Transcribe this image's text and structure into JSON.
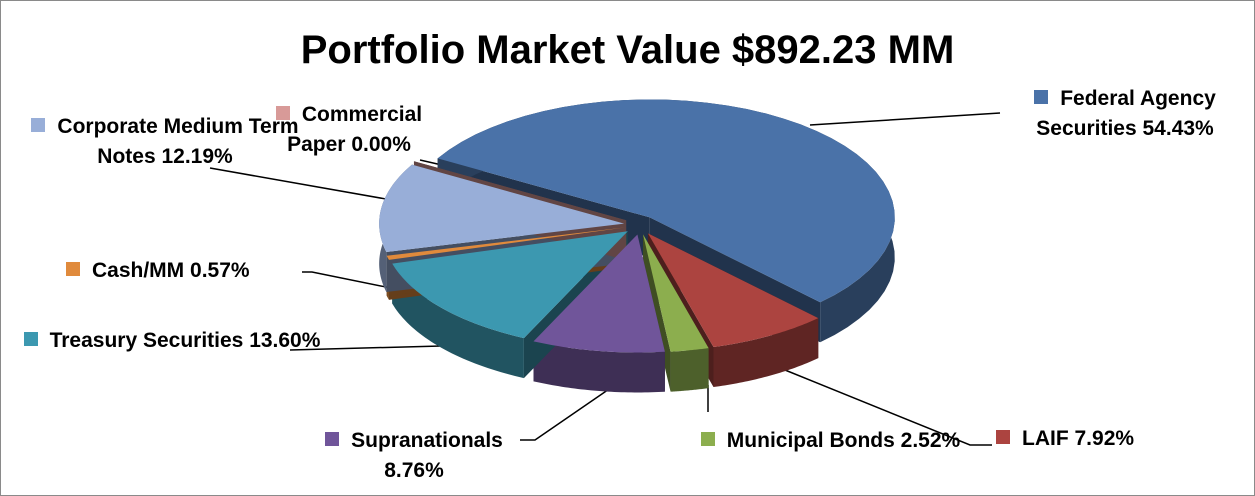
{
  "chart_data": {
    "type": "pie",
    "title": "Portfolio Market Value $892.23 MM",
    "categories": [
      "Federal Agency Securities",
      "LAIF",
      "Municipal Bonds",
      "Supranationals",
      "Treasury Securities",
      "Cash/MM",
      "Corporate Medium Term Notes",
      "Commercial Paper"
    ],
    "values": [
      54.43,
      7.92,
      2.52,
      8.76,
      13.6,
      0.57,
      12.19,
      0.0
    ],
    "value_labels": [
      "54.43%",
      "7.92%",
      "2.52%",
      "8.76%",
      "13.60%",
      "0.57%",
      "12.19%",
      "0.00%"
    ],
    "colors": [
      "#4a72a8",
      "#ac4440",
      "#8cae4e",
      "#70559a",
      "#3c98b0",
      "#e08a3c",
      "#98aed8",
      "#d89a98"
    ]
  }
}
